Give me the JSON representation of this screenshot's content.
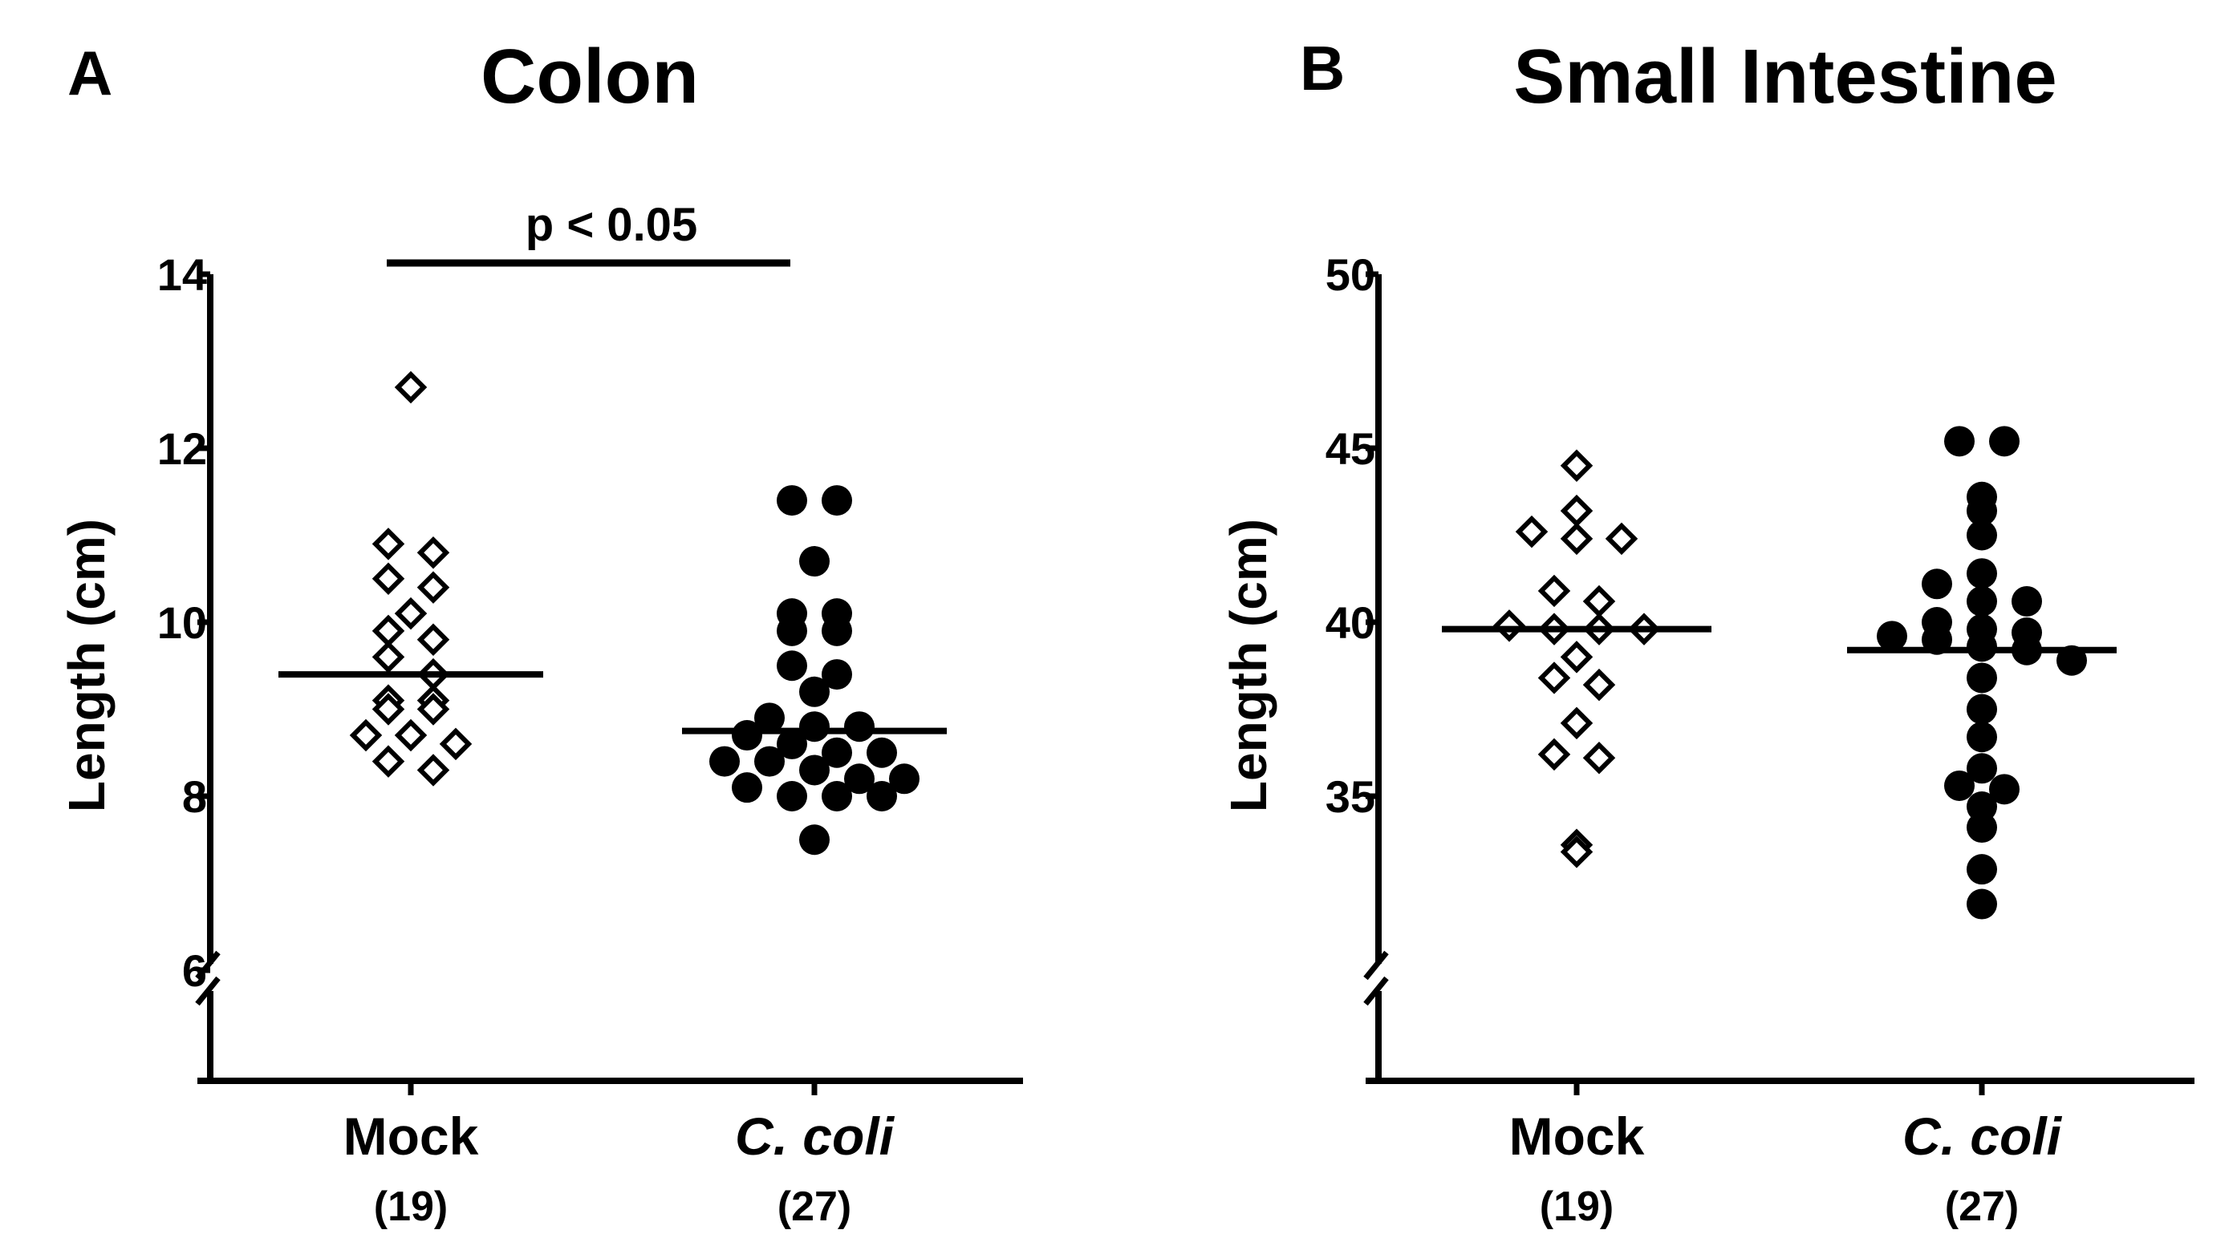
{
  "chart_data": [
    {
      "type": "scatter",
      "panel_letter": "A",
      "title": "Colon",
      "ylabel": "Length  (cm)",
      "yticks": [
        "6",
        "8",
        "10",
        "12",
        "14"
      ],
      "ylim": [
        6,
        14
      ],
      "axis_break_below": 6,
      "categories": [
        {
          "name": "Mock",
          "n": "(19)",
          "italic": false
        },
        {
          "name": "C. coli",
          "n": "(27)",
          "italic": true
        }
      ],
      "series": [
        {
          "name": "Mock",
          "marker": "open-diamond",
          "values": [
            12.7,
            10.9,
            10.8,
            10.5,
            10.4,
            10.1,
            9.9,
            9.8,
            9.6,
            9.4,
            9.1,
            9.1,
            9.0,
            9.0,
            8.7,
            8.7,
            8.6,
            8.4,
            8.3
          ],
          "mean": 9.4
        },
        {
          "name": "C. coli",
          "marker": "filled-circle",
          "values": [
            11.4,
            11.4,
            10.7,
            10.1,
            10.1,
            9.9,
            9.9,
            9.5,
            9.4,
            9.2,
            8.9,
            8.8,
            8.8,
            8.7,
            8.6,
            8.5,
            8.4,
            8.4,
            8.3,
            8.2,
            8.2,
            8.1,
            8.0,
            8.0,
            8.0,
            7.5,
            8.5
          ],
          "mean": 8.75
        }
      ],
      "significance": {
        "label": "p < 0.05",
        "from": "Mock",
        "to": "C. coli"
      }
    },
    {
      "type": "scatter",
      "panel_letter": "B",
      "title": "Small Intestine",
      "ylabel": "Length (cm)",
      "yticks": [
        "35",
        "40",
        "45",
        "50"
      ],
      "ylim": [
        30,
        50
      ],
      "axis_break_below": 30,
      "categories": [
        {
          "name": "Mock",
          "n": "(19)",
          "italic": false
        },
        {
          "name": "C. coli",
          "n": "(27)",
          "italic": true
        }
      ],
      "series": [
        {
          "name": "Mock",
          "marker": "open-diamond",
          "values": [
            44.5,
            43.2,
            42.6,
            42.4,
            42.4,
            40.9,
            40.6,
            39.9,
            39.8,
            39.8,
            39.8,
            39.0,
            38.4,
            38.2,
            37.1,
            36.2,
            36.1,
            33.6,
            33.4
          ],
          "mean": 39.8
        },
        {
          "name": "C. coli",
          "marker": "filled-circle",
          "values": [
            45.2,
            45.2,
            43.6,
            43.2,
            42.5,
            41.4,
            41.1,
            40.6,
            40.6,
            40.0,
            39.8,
            39.7,
            39.6,
            39.5,
            39.3,
            39.2,
            38.9,
            38.4,
            37.5,
            36.7,
            35.8,
            35.3,
            35.2,
            34.7,
            34.1,
            32.9,
            31.9
          ],
          "mean": 39.2
        }
      ]
    }
  ]
}
